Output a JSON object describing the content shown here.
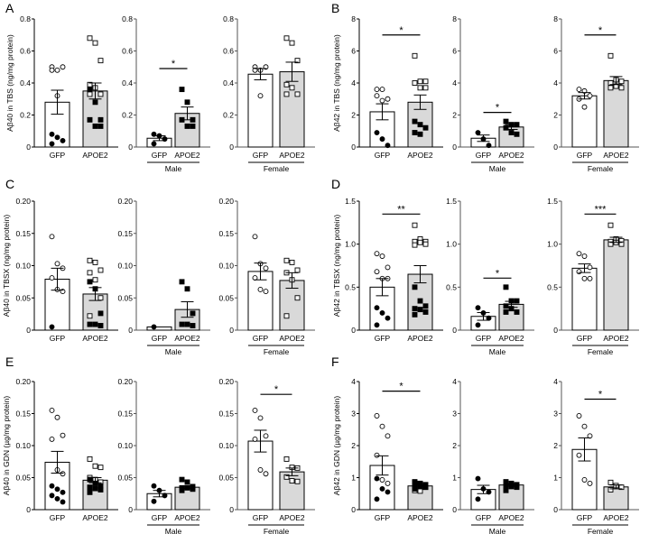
{
  "chart_data": [
    {
      "panel": "A",
      "type": "bar",
      "ylabel": "Aβ40 in TBS (ng/mg protein)",
      "ylim": [
        0,
        0.8
      ],
      "yticks": [
        "0",
        "0.2",
        "0.4",
        "0.6",
        "0.8"
      ],
      "subplots": [
        {
          "group": "",
          "categories": [
            "GFP",
            "APOE2"
          ],
          "values": [
            0.28,
            0.35
          ],
          "sem": [
            0.075,
            0.05
          ],
          "sig": "",
          "points": [
            {
              "open": [
                0.5,
                0.48,
                0.5,
                0.48,
                0.32
              ],
              "filled": [
                0.08,
                0.06,
                0.04,
                0.02
              ]
            },
            {
              "open": [
                0.68,
                0.65,
                0.54,
                0.39,
                0.37,
                0.33,
                0.33
              ],
              "filled": [
                0.36,
                0.28,
                0.17,
                0.17,
                0.13,
                0.13
              ]
            }
          ]
        },
        {
          "group": "Male",
          "categories": [
            "GFP",
            "APOE2"
          ],
          "values": [
            0.055,
            0.21
          ],
          "sem": [
            0.015,
            0.04
          ],
          "sig": "*",
          "points": [
            {
              "open": [],
              "filled": [
                0.08,
                0.07,
                0.05,
                0.02
              ]
            },
            {
              "open": [],
              "filled": [
                0.36,
                0.28,
                0.17,
                0.17,
                0.13,
                0.13
              ]
            }
          ]
        },
        {
          "group": "Female",
          "categories": [
            "GFP",
            "APOE2"
          ],
          "values": [
            0.455,
            0.47
          ],
          "sem": [
            0.035,
            0.06
          ],
          "sig": "",
          "points": [
            {
              "open": [
                0.5,
                0.48,
                0.5,
                0.48,
                0.32
              ],
              "filled": []
            },
            {
              "open": [
                0.68,
                0.65,
                0.54,
                0.39,
                0.37,
                0.33,
                0.33
              ],
              "filled": []
            }
          ]
        }
      ]
    },
    {
      "panel": "B",
      "type": "bar",
      "ylabel": "Aβ42 in TBS (ng/mg protein)",
      "ylim": [
        0,
        8
      ],
      "yticks": [
        "0",
        "2",
        "4",
        "6",
        "8"
      ],
      "subplots": [
        {
          "group": "",
          "categories": [
            "GFP",
            "APOE2"
          ],
          "values": [
            2.2,
            2.8
          ],
          "sem": [
            0.5,
            0.45
          ],
          "sig": "*",
          "points": [
            {
              "open": [
                3.6,
                3.6,
                3.0,
                3.2,
                2.9
              ],
              "filled": [
                0.9,
                0.5,
                0.1
              ]
            },
            {
              "open": [
                5.7,
                4.1,
                4.1,
                4.0,
                3.7,
                3.7
              ],
              "filled": [
                1.6,
                1.4,
                1.2,
                0.9,
                0.8
              ]
            }
          ]
        },
        {
          "group": "Male",
          "categories": [
            "GFP",
            "APOE2"
          ],
          "values": [
            0.55,
            1.25
          ],
          "sem": [
            0.2,
            0.15
          ],
          "sig": "*",
          "points": [
            {
              "open": [],
              "filled": [
                0.9,
                0.5,
                0.1
              ]
            },
            {
              "open": [],
              "filled": [
                1.6,
                1.4,
                1.4,
                1.2,
                0.9,
                0.8
              ]
            }
          ]
        },
        {
          "group": "Female",
          "categories": [
            "GFP",
            "APOE2"
          ],
          "values": [
            3.2,
            4.15
          ],
          "sem": [
            0.2,
            0.25
          ],
          "sig": "*",
          "points": [
            {
              "open": [
                3.6,
                3.5,
                3.2,
                3.0,
                2.5
              ],
              "filled": []
            },
            {
              "open": [
                5.7,
                4.2,
                4.1,
                4.0,
                3.8,
                3.7,
                3.7
              ],
              "filled": []
            }
          ]
        }
      ]
    },
    {
      "panel": "C",
      "type": "bar",
      "ylabel": "Aβ40 in TBSX (ng/mg protein)",
      "ylim": [
        0,
        0.2
      ],
      "yticks": [
        "0",
        "0.05",
        "0.10",
        "0.15",
        "0.20"
      ],
      "subplots": [
        {
          "group": "",
          "categories": [
            "GFP",
            "APOE2"
          ],
          "values": [
            0.079,
            0.056
          ],
          "sem": [
            0.017,
            0.01
          ],
          "sig": "",
          "points": [
            {
              "open": [
                0.145,
                0.103,
                0.096,
                0.081,
                0.063,
                0.06
              ],
              "filled": [
                0.005
              ]
            },
            {
              "open": [
                0.108,
                0.105,
                0.093,
                0.089,
                0.078,
                0.05,
                0.022
              ],
              "filled": [
                0.075,
                0.064,
                0.026,
                0.009,
                0.009,
                0.007
              ]
            }
          ]
        },
        {
          "group": "Male",
          "categories": [
            "GFP",
            "APOE2"
          ],
          "values": [
            0.005,
            0.032
          ],
          "sem": [
            0.0,
            0.012
          ],
          "sig": "",
          "points": [
            {
              "open": [],
              "filled": [
                0.005
              ]
            },
            {
              "open": [],
              "filled": [
                0.075,
                0.064,
                0.026,
                0.009,
                0.009,
                0.007
              ]
            }
          ]
        },
        {
          "group": "Female",
          "categories": [
            "GFP",
            "APOE2"
          ],
          "values": [
            0.091,
            0.077
          ],
          "sem": [
            0.013,
            0.012
          ],
          "sig": "",
          "points": [
            {
              "open": [
                0.145,
                0.103,
                0.096,
                0.081,
                0.063,
                0.06
              ],
              "filled": []
            },
            {
              "open": [
                0.108,
                0.105,
                0.093,
                0.089,
                0.078,
                0.05,
                0.022
              ],
              "filled": []
            }
          ]
        }
      ]
    },
    {
      "panel": "D",
      "type": "bar",
      "ylabel": "Aβ42 in TBSX (ng/mg protein)",
      "ylim": [
        0,
        1.5
      ],
      "yticks": [
        "0",
        "0.5",
        "1.0",
        "1.5"
      ],
      "subplots": [
        {
          "group": "",
          "categories": [
            "GFP",
            "APOE2"
          ],
          "values": [
            0.5,
            0.65
          ],
          "sem": [
            0.1,
            0.1
          ],
          "sig": "**",
          "points": [
            {
              "open": [
                0.89,
                0.86,
                0.73,
                0.68,
                0.6,
                0.6
              ],
              "filled": [
                0.26,
                0.2,
                0.14,
                0.06
              ]
            },
            {
              "open": [
                1.22,
                1.06,
                1.03,
                1.03,
                1.02,
                1.0,
                0.99
              ],
              "filled": [
                0.5,
                0.34,
                0.28,
                0.25,
                0.24,
                0.21,
                0.18
              ]
            }
          ]
        },
        {
          "group": "Male",
          "categories": [
            "GFP",
            "APOE2"
          ],
          "values": [
            0.16,
            0.3
          ],
          "sem": [
            0.045,
            0.035
          ],
          "sig": "*",
          "points": [
            {
              "open": [],
              "filled": [
                0.26,
                0.2,
                0.14,
                0.06
              ]
            },
            {
              "open": [],
              "filled": [
                0.5,
                0.34,
                0.34,
                0.28,
                0.25,
                0.21,
                0.21
              ]
            }
          ]
        },
        {
          "group": "Female",
          "categories": [
            "GFP",
            "APOE2"
          ],
          "values": [
            0.72,
            1.05
          ],
          "sem": [
            0.05,
            0.03
          ],
          "sig": "***",
          "points": [
            {
              "open": [
                0.89,
                0.86,
                0.73,
                0.68,
                0.6,
                0.6
              ],
              "filled": []
            },
            {
              "open": [
                1.22,
                1.06,
                1.04,
                1.03,
                1.02,
                1.0,
                1.0
              ],
              "filled": []
            }
          ]
        }
      ]
    },
    {
      "panel": "E",
      "type": "bar",
      "ylabel": "Aβ40 in GDN (µg/mg protein)",
      "ylim": [
        0,
        0.2
      ],
      "yticks": [
        "0",
        "0.05",
        "0.10",
        "0.15",
        "0.20"
      ],
      "subplots": [
        {
          "group": "",
          "categories": [
            "GFP",
            "APOE2"
          ],
          "values": [
            0.074,
            0.046
          ],
          "sem": [
            0.017,
            0.004
          ],
          "sig": "",
          "points": [
            {
              "open": [
                0.155,
                0.144,
                0.116,
                0.11,
                0.062,
                0.056
              ],
              "filled": [
                0.037,
                0.032,
                0.027,
                0.022,
                0.017,
                0.012
              ]
            },
            {
              "open": [
                0.079,
                0.068,
                0.066,
                0.05,
                0.047,
                0.043
              ],
              "filled": [
                0.047,
                0.041,
                0.037,
                0.035,
                0.033,
                0.031,
                0.027
              ]
            }
          ]
        },
        {
          "group": "Male",
          "categories": [
            "GFP",
            "APOE2"
          ],
          "values": [
            0.025,
            0.035
          ],
          "sem": [
            0.005,
            0.002
          ],
          "sig": "",
          "points": [
            {
              "open": [],
              "filled": [
                0.037,
                0.03,
                0.022,
                0.013
              ]
            },
            {
              "open": [],
              "filled": [
                0.047,
                0.043,
                0.036,
                0.034,
                0.034,
                0.032,
                0.03
              ]
            }
          ]
        },
        {
          "group": "Female",
          "categories": [
            "GFP",
            "APOE2"
          ],
          "values": [
            0.107,
            0.059
          ],
          "sem": [
            0.017,
            0.006
          ],
          "sig": "*",
          "points": [
            {
              "open": [
                0.155,
                0.143,
                0.115,
                0.11,
                0.062,
                0.056
              ],
              "filled": []
            },
            {
              "open": [
                0.079,
                0.066,
                0.065,
                0.051,
                0.045,
                0.044
              ],
              "filled": []
            }
          ]
        }
      ]
    },
    {
      "panel": "F",
      "type": "bar",
      "ylabel": "Aβ42 in GDN (µg/mg protein)",
      "ylim": [
        0,
        4
      ],
      "yticks": [
        "0",
        "1",
        "2",
        "3",
        "4"
      ],
      "subplots": [
        {
          "group": "",
          "categories": [
            "GFP",
            "APOE2"
          ],
          "values": [
            1.38,
            0.74
          ],
          "sem": [
            0.3,
            0.04
          ],
          "sig": "*",
          "points": [
            {
              "open": [
                2.93,
                2.6,
                2.3,
                1.7,
                0.93,
                0.82
              ],
              "filled": [
                0.97,
                0.65,
                0.55,
                0.33
              ]
            },
            {
              "open": [
                0.85,
                0.8,
                0.7,
                0.6,
                0.58
              ],
              "filled": [
                0.87,
                0.82,
                0.78,
                0.75,
                0.72,
                0.7,
                0.65
              ]
            }
          ]
        },
        {
          "group": "Male",
          "categories": [
            "GFP",
            "APOE2"
          ],
          "values": [
            0.63,
            0.77
          ],
          "sem": [
            0.13,
            0.04
          ],
          "sig": "",
          "points": [
            {
              "open": [],
              "filled": [
                0.97,
                0.65,
                0.55,
                0.33
              ]
            },
            {
              "open": [],
              "filled": [
                0.87,
                0.82,
                0.78,
                0.75,
                0.72,
                0.7,
                0.6
              ]
            }
          ]
        },
        {
          "group": "Female",
          "categories": [
            "GFP",
            "APOE2"
          ],
          "values": [
            1.88,
            0.71
          ],
          "sem": [
            0.36,
            0.06
          ],
          "sig": "*",
          "points": [
            {
              "open": [
                2.93,
                2.6,
                2.3,
                1.7,
                0.93,
                0.82
              ],
              "filled": []
            },
            {
              "open": [
                0.85,
                0.75,
                0.7,
                0.62
              ],
              "filled": []
            }
          ]
        }
      ]
    }
  ],
  "colors": {
    "gfp_bar": "#ffffff",
    "apoe2_bar": "#d9d9d9",
    "axis": "#000000",
    "axis_gray": "#555555"
  }
}
